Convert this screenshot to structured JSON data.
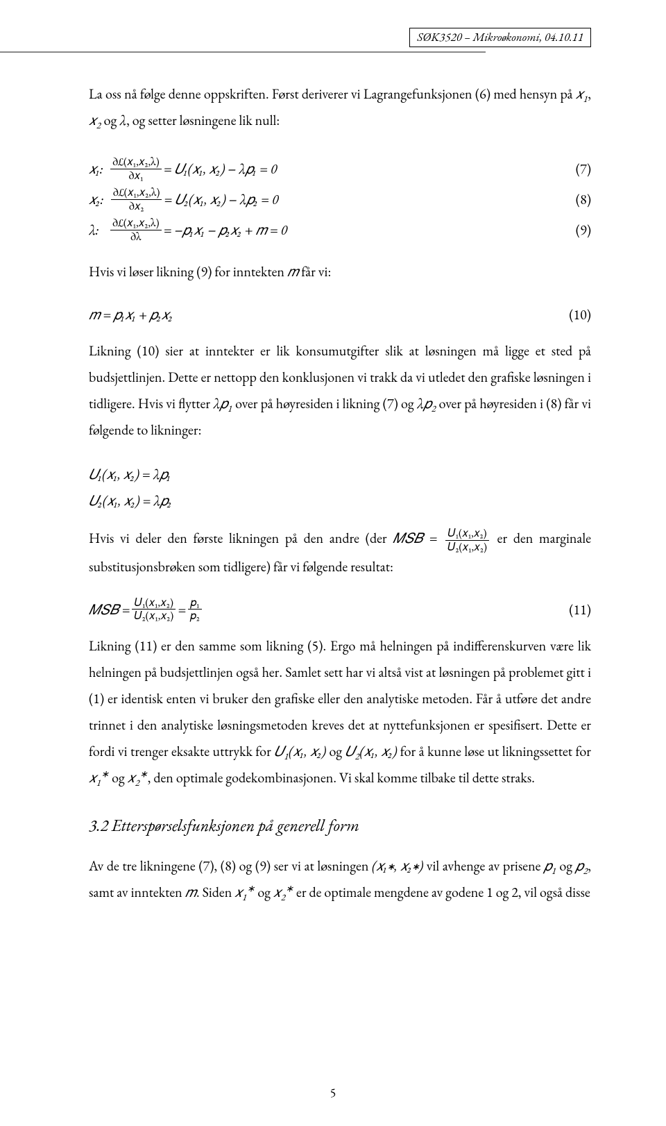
{
  "header": {
    "course_line": "SØK3520 – Mikroøkonomi, 04.10.11"
  },
  "page_number": "5",
  "para": {
    "p1": "La oss nå følge denne oppskriften. Først deriverer vi Lagrangefunksjonen (6) med hensyn på",
    "p1b": ", og setter løsningene lik null:",
    "og": " og ",
    "comma": ",",
    "x1": "𝑥",
    "x1s": "1",
    "x2": "𝑥",
    "x2s": "2",
    "lambda": "λ",
    "eq7_num": "(7)",
    "eq8_num": "(8)",
    "eq9_num": "(9)",
    "eq10_num": "(10)",
    "eq11_num": "(11)",
    "p2a": "Hvis vi løser likning (9) for inntekten ",
    "p2b": " får vi:",
    "m": "𝑚",
    "p3": "Likning (10) sier at inntekter er lik konsumutgifter slik at løsningen må ligge et sted på budsjettlinjen. Dette er nettopp den konklusjonen vi trakk da vi utledet den grafiske løsningen i tidligere. Hvis vi flytter ",
    "p3b": " over på høyresiden i likning (7) og ",
    "p3c": " over på høyresiden i (8) får vi følgende to likninger:",
    "lp1": "λ𝑝",
    "lp1s": "1",
    "lp2": "λ𝑝",
    "lp2s": "2",
    "p4a": "Hvis vi deler den første likningen på den andre (der ",
    "p4b": " er den marginale substitusjonsbrøken som tidligere) får vi følgende resultat:",
    "MSBeq": "𝑀𝑆𝐵 = ",
    "p5": "Likning (11) er den samme som likning (5). Ergo må helningen på indifferenskurven være lik helningen på budsjettlinjen også her. Samlet sett har vi altså vist at løsningen på problemet gitt i (1) er identisk enten vi bruker den grafiske eller den analytiske metoden. Får å utføre det andre trinnet i den analytiske løsningsmetoden kreves det at nyttefunksjonen er spesifisert. Dette er fordi vi trenger eksakte uttrykk for ",
    "p5b": " for å kunne løse ut likningssettet for ",
    "p5c": ", den optimale godekombinasjonen. Vi skal komme tilbake til dette straks.",
    "U1": "𝑈",
    "U1s": "1",
    "U2": "𝑈",
    "U2s": "2",
    "args": "(𝑥₁, 𝑥₂)",
    "xstar1": "𝑥",
    "xstar1sub": "1",
    "star": "∗",
    "xstar2": "𝑥",
    "xstar2sub": "2",
    "section_title": "3.2 Etterspørselsfunksjonen på generell form",
    "p6a": "Av de tre likningene (7), (8) og (9) ser vi at løsningen ",
    "p6b": " vil avhenge av prisene ",
    "p6c": ", samt av inntekten ",
    "p6d": ". Siden ",
    "p6e": " er de optimale mengdene av godene 1 og 2, vil også disse",
    "p1sym": "𝑝",
    "p1subs": "1",
    "p2sym": "𝑝",
    "p2subs": "2",
    "tuple_star": "(𝑥₁∗, 𝑥₂∗)",
    "eq7_lhs_label": "𝑥₁:",
    "eq8_lhs_label": "𝑥₂:",
    "eq9_lhs_label": "λ:",
    "dL": "∂ℒ(𝑥₁,𝑥₂,λ)",
    "dx1": "∂𝑥₁",
    "dx2": "∂𝑥₂",
    "dlam": "∂λ",
    "eq7_rhs": " = 𝑈₁(𝑥₁, 𝑥₂) − λ𝑝₁ = 0",
    "eq8_rhs": " = 𝑈₂(𝑥₁, 𝑥₂) − λ𝑝₂ = 0",
    "eq9_rhs": " = −𝑝₁𝑥₁ − 𝑝₂𝑥₂ + 𝑚 = 0",
    "eq10_body": "𝑚 = 𝑝₁𝑥₁ + 𝑝₂𝑥₂",
    "eqU1": "𝑈₁(𝑥₁, 𝑥₂) = λ𝑝₁",
    "eqU2": "𝑈₂(𝑥₁, 𝑥₂) = λ𝑝₂",
    "MSB": "𝑀𝑆𝐵 = ",
    "U1args": "𝑈₁(𝑥₁,𝑥₂)",
    "U2args": "𝑈₂(𝑥₁,𝑥₂)",
    "eq_sign": " = ",
    "p1_over_p2_num": "𝑝₁",
    "p1_over_p2_den": "𝑝₂"
  }
}
